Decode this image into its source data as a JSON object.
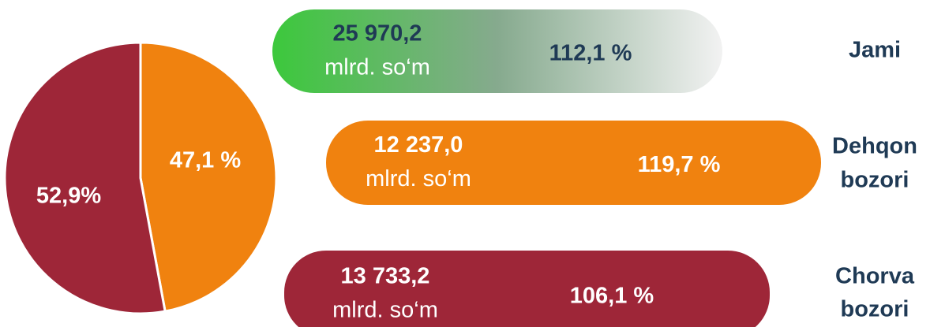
{
  "chart_data": {
    "type": "pie",
    "values": [
      47.1,
      52.9
    ],
    "value_labels": [
      "47,1 %",
      "52,9%"
    ],
    "colors": [
      "#f0820f",
      "#9e2638"
    ]
  },
  "rows": [
    {
      "amount": "25 970,2",
      "unit": "mlrd. so‘m",
      "percent": "112,1 %",
      "label": [
        "Jami"
      ]
    },
    {
      "amount": "12 237,0",
      "unit": "mlrd. so‘m",
      "percent": "119,7 %",
      "label": [
        "Dehqon",
        "bozori"
      ]
    },
    {
      "amount": "13 733,2",
      "unit": "mlrd. so‘m",
      "percent": "106,1 %",
      "label": [
        "Chorva",
        "bozori"
      ]
    }
  ]
}
